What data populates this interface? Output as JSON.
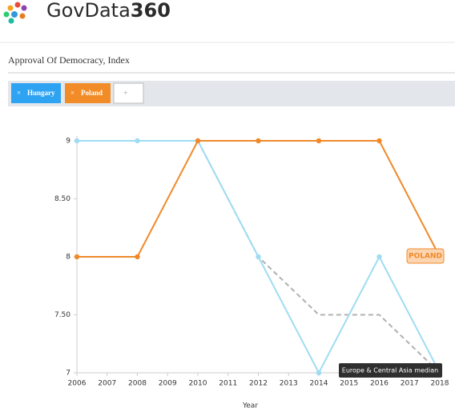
{
  "logo": {
    "text": "GovData",
    "suffix": "360"
  },
  "title": "Approval Of Democracy,  Index",
  "filters": {
    "remove_icon": "×",
    "add_button": "+"
  },
  "chart_data": {
    "type": "line",
    "x_label": "Year",
    "x": [
      2006,
      2008,
      2010,
      2012,
      2014,
      2016,
      2018
    ],
    "xlim": [
      2006,
      2018
    ],
    "xticks": [
      2006,
      2007,
      2008,
      2009,
      2010,
      2011,
      2012,
      2013,
      2014,
      2015,
      2016,
      2017,
      2018
    ],
    "ylim": [
      7,
      9
    ],
    "yticks": [
      7,
      {
        "value": 7.5,
        "label": "7.50"
      },
      8,
      {
        "value": 8.5,
        "label": "8.50"
      },
      9
    ],
    "series": [
      {
        "name": "Hungary",
        "color": "#9fdcf3",
        "chip_color": "#2ea3f2",
        "markers": true,
        "dashed": false,
        "values": [
          9,
          9,
          9,
          8,
          7,
          8,
          7
        ]
      },
      {
        "name": "Poland",
        "color": "#f0892a",
        "chip_color": "#f28c28",
        "markers": true,
        "dashed": false,
        "values": [
          8,
          8,
          9,
          9,
          9,
          9,
          8
        ]
      },
      {
        "name": "Europe & Central Asia median",
        "color": "#b0b0b0",
        "markers": false,
        "dashed": true,
        "values": [
          null,
          null,
          9,
          8,
          7.5,
          7.5,
          7
        ]
      }
    ],
    "annotations": [
      {
        "text": "POLAND",
        "series": 1
      }
    ]
  }
}
